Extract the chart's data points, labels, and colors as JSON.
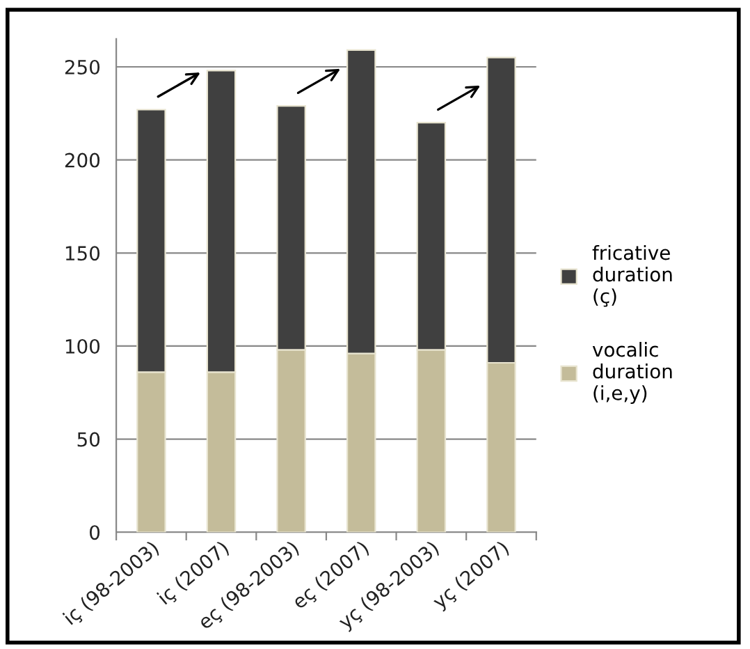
{
  "chart_data": {
    "type": "bar",
    "stacked": true,
    "categories": [
      "iç (98-2003)",
      "iç (2007)",
      "eç (98-2003)",
      "eç (2007)",
      "yç (98-2003)",
      "yç (2007)"
    ],
    "series": [
      {
        "name": "vocalic duration (i,e,y)",
        "color": "#c4bc9a",
        "values": [
          86,
          86,
          98,
          96,
          98,
          91
        ]
      },
      {
        "name": "fricative duration (ç)",
        "color": "#404040",
        "values": [
          141,
          162,
          131,
          163,
          122,
          164
        ]
      }
    ],
    "ylim": [
      0,
      265
    ],
    "yticks": [
      0,
      50,
      100,
      150,
      200,
      250
    ],
    "grid": "y",
    "legend": "right"
  }
}
